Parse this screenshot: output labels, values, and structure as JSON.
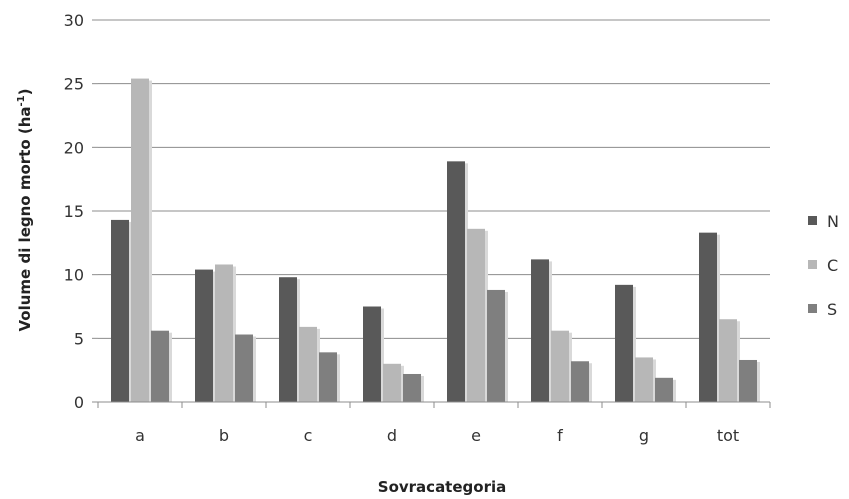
{
  "chart_data": {
    "type": "bar",
    "title": "",
    "xlabel": "Sovracategoria",
    "ylabel_main": "Volume di legno morto (ha",
    "ylabel_sup": "-1",
    "ylabel_end": ")",
    "categories": [
      "a",
      "b",
      "c",
      "d",
      "e",
      "f",
      "g",
      "tot"
    ],
    "series": [
      {
        "name": "N",
        "values": [
          14.3,
          10.4,
          9.8,
          7.5,
          18.9,
          11.2,
          9.2,
          13.3
        ],
        "color": "#595959"
      },
      {
        "name": "C",
        "values": [
          25.4,
          10.8,
          5.9,
          3.0,
          13.6,
          5.6,
          3.5,
          6.5
        ],
        "color": "#b7b7b7"
      },
      {
        "name": "S",
        "values": [
          5.6,
          5.3,
          3.9,
          2.2,
          8.8,
          3.2,
          1.9,
          3.3
        ],
        "color": "#7f7f7f"
      }
    ],
    "ylim": [
      0,
      30
    ],
    "yticks": [
      0,
      5,
      10,
      15,
      20,
      25,
      30
    ],
    "grid": true,
    "legend": "right"
  }
}
